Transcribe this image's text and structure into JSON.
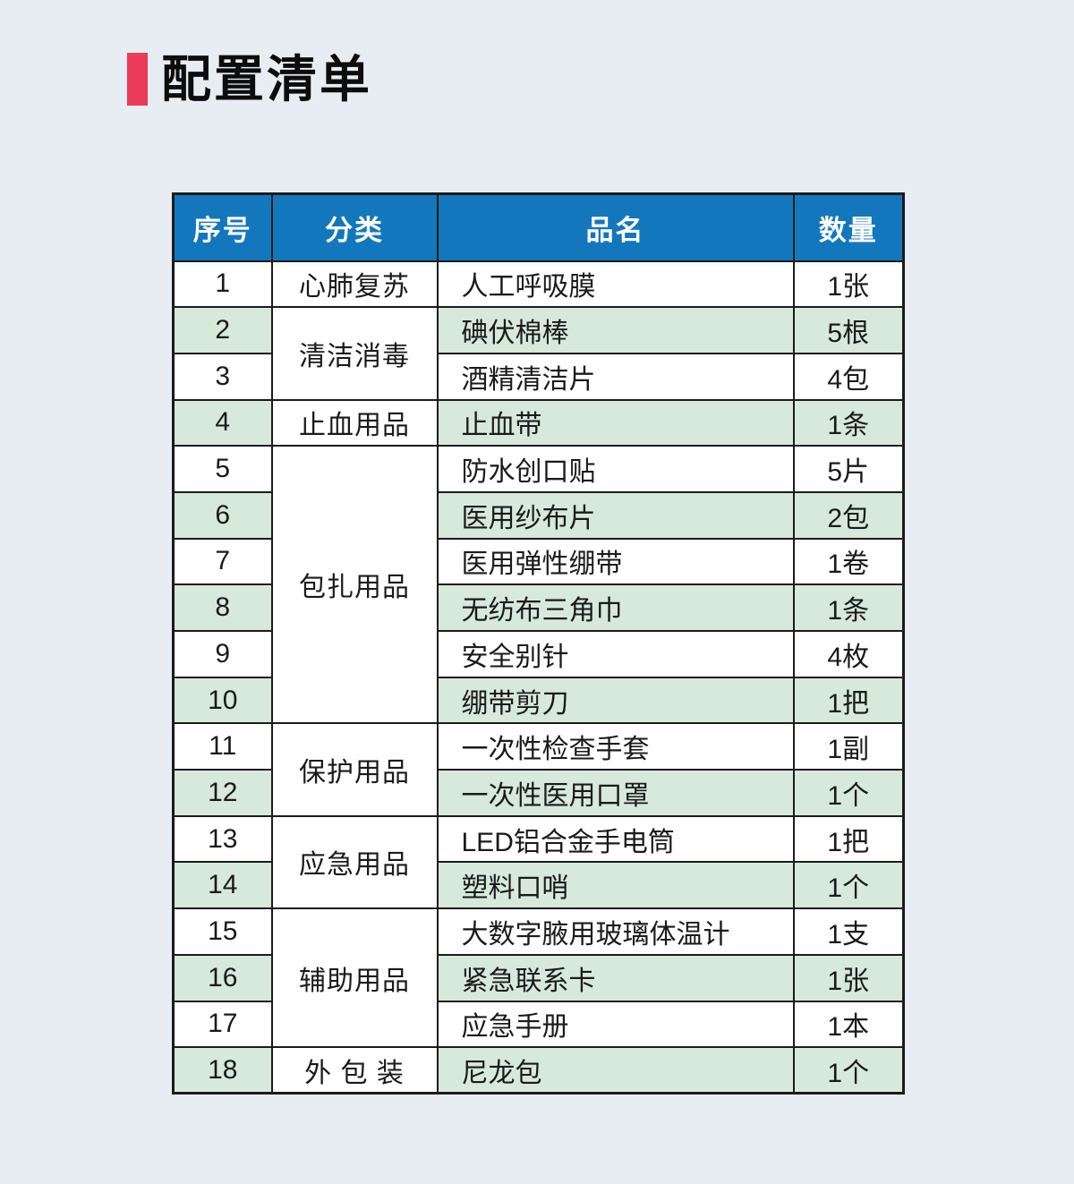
{
  "page": {
    "title": "配置清单"
  },
  "colors": {
    "accent-red": "#ec3a5a",
    "header-blue": "#1377bd",
    "row-green": "#d7e9da",
    "row-white": "#ffffff",
    "border-dark": "#1b1b1b",
    "page-bg": "#e7edf2",
    "header-text": "#ffffff",
    "body-text": "#1a1a1a"
  },
  "table": {
    "headers": {
      "index": "序号",
      "category": "分类",
      "name": "品名",
      "quantity": "数量"
    },
    "rows": [
      {
        "no": "1",
        "category": "心肺复苏",
        "category_span": 1,
        "item": "人工呼吸膜",
        "qty": "1张"
      },
      {
        "no": "2",
        "category": "清洁消毒",
        "category_span": 2,
        "item": "碘伏棉棒",
        "qty": "5根"
      },
      {
        "no": "3",
        "item": "酒精清洁片",
        "qty": "4包"
      },
      {
        "no": "4",
        "category": "止血用品",
        "category_span": 1,
        "item": "止血带",
        "qty": "1条"
      },
      {
        "no": "5",
        "category": "包扎用品",
        "category_span": 6,
        "item": "防水创口贴",
        "qty": "5片"
      },
      {
        "no": "6",
        "item": "医用纱布片",
        "qty": "2包"
      },
      {
        "no": "7",
        "item": "医用弹性绷带",
        "qty": "1卷"
      },
      {
        "no": "8",
        "item": "无纺布三角巾",
        "qty": "1条"
      },
      {
        "no": "9",
        "item": "安全别针",
        "qty": "4枚"
      },
      {
        "no": "10",
        "item": "绷带剪刀",
        "qty": "1把"
      },
      {
        "no": "11",
        "category": "保护用品",
        "category_span": 2,
        "item": "一次性检查手套",
        "qty": "1副"
      },
      {
        "no": "12",
        "item": "一次性医用口罩",
        "qty": "1个"
      },
      {
        "no": "13",
        "category": "应急用品",
        "category_span": 2,
        "item": "LED铝合金手电筒",
        "qty": "1把"
      },
      {
        "no": "14",
        "item": "塑料口哨",
        "qty": "1个"
      },
      {
        "no": "15",
        "category": "辅助用品",
        "category_span": 3,
        "item": "大数字腋用玻璃体温计",
        "qty": "1支"
      },
      {
        "no": "16",
        "item": "紧急联系卡",
        "qty": "1张"
      },
      {
        "no": "17",
        "item": "应急手册",
        "qty": "1本"
      },
      {
        "no": "18",
        "category": "外 包 装",
        "category_span": 1,
        "item": "尼龙包",
        "qty": "1个"
      }
    ]
  }
}
